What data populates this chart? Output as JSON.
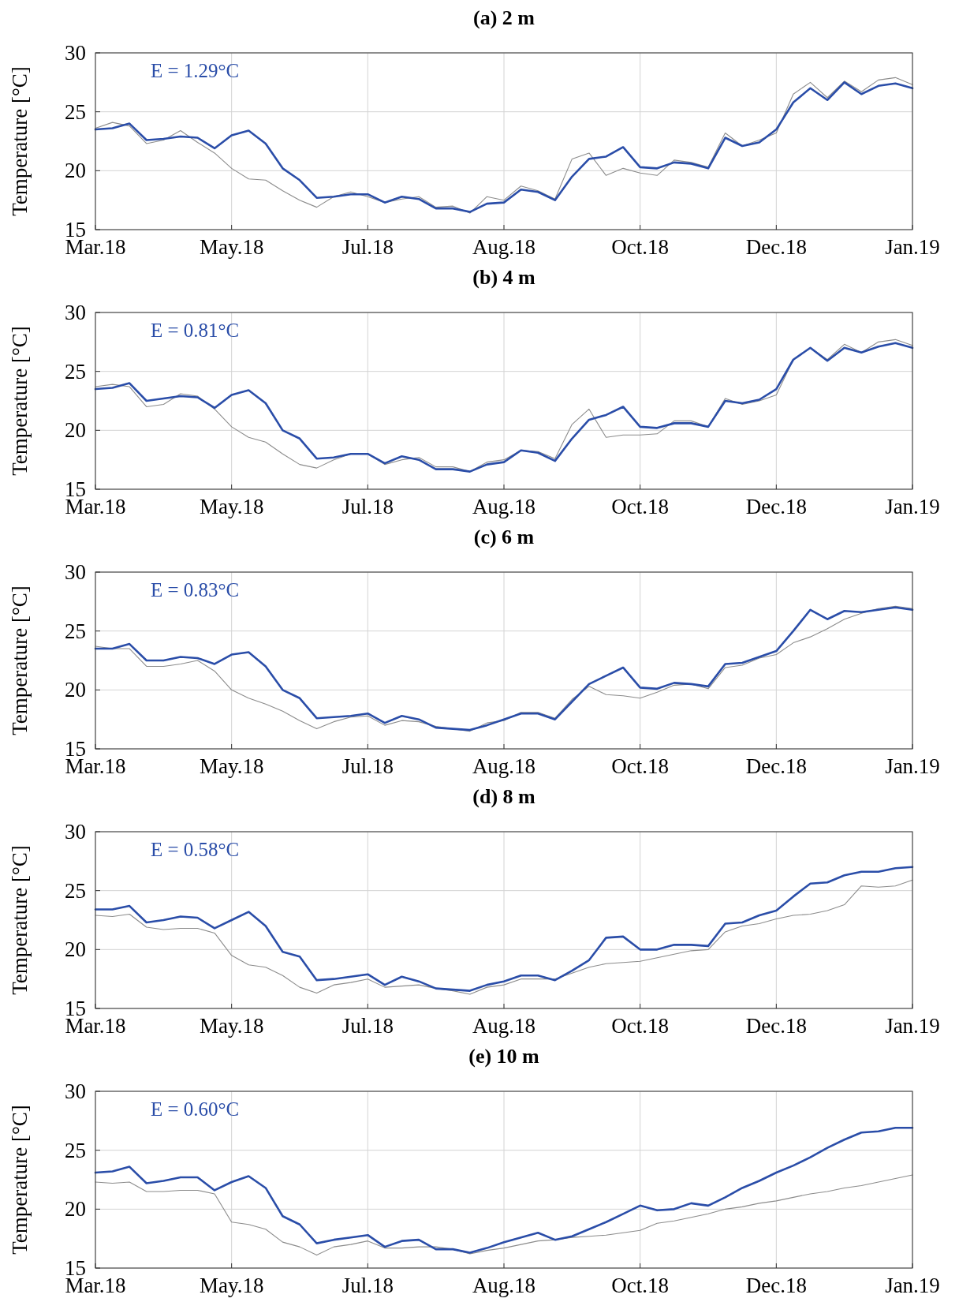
{
  "chart_data": [
    {
      "type": "line",
      "title": "(a) 2 m",
      "ylabel": "Temperature [°C]",
      "annotations": [
        "E = 1.29°C"
      ],
      "ylim": [
        15,
        30
      ],
      "yticks": [
        15,
        20,
        25,
        30
      ],
      "grid": true,
      "categories": [
        "Mar.18",
        null,
        null,
        null,
        null,
        null,
        null,
        null,
        "May.18",
        null,
        null,
        null,
        null,
        null,
        null,
        null,
        "Jul.18",
        null,
        null,
        null,
        null,
        null,
        null,
        null,
        "Aug.18",
        null,
        null,
        null,
        null,
        null,
        null,
        null,
        "Oct.18",
        null,
        null,
        null,
        null,
        null,
        null,
        null,
        "Dec.18",
        null,
        null,
        null,
        null,
        null,
        null,
        null,
        "Jan.19"
      ],
      "series": [
        {
          "color": "#2a4da8",
          "values": [
            23.5,
            23.6,
            24.0,
            22.6,
            22.7,
            22.9,
            22.8,
            21.9,
            23.0,
            23.4,
            22.3,
            20.2,
            19.2,
            17.7,
            17.8,
            18.0,
            18.0,
            17.3,
            17.8,
            17.6,
            16.8,
            16.8,
            16.5,
            17.2,
            17.3,
            18.4,
            18.2,
            17.5,
            19.5,
            21.0,
            21.2,
            22.0,
            20.3,
            20.2,
            20.7,
            20.6,
            20.2,
            22.8,
            22.1,
            22.4,
            23.5,
            25.8,
            27.0,
            26.0,
            27.5,
            26.5,
            27.2,
            27.4,
            27.0
          ]
        },
        {
          "color": "#8c8c8c",
          "values": [
            23.6,
            24.1,
            23.8,
            22.3,
            22.6,
            23.4,
            22.4,
            21.5,
            20.2,
            19.3,
            19.2,
            18.3,
            17.5,
            16.9,
            17.8,
            18.2,
            17.8,
            17.3,
            17.6,
            17.8,
            16.9,
            17.0,
            16.4,
            17.8,
            17.5,
            18.7,
            18.3,
            17.6,
            21.0,
            21.5,
            19.6,
            20.2,
            19.8,
            19.6,
            20.9,
            20.7,
            20.3,
            23.2,
            22.1,
            22.6,
            23.2,
            26.5,
            27.5,
            26.2,
            27.6,
            26.7,
            27.7,
            27.9,
            27.3
          ]
        }
      ]
    },
    {
      "type": "line",
      "title": "(b) 4 m",
      "ylabel": "Temperature [°C]",
      "annotations": [
        "E = 0.81°C"
      ],
      "ylim": [
        15,
        30
      ],
      "yticks": [
        15,
        20,
        25,
        30
      ],
      "grid": true,
      "categories": [
        "Mar.18",
        null,
        null,
        null,
        null,
        null,
        null,
        null,
        "May.18",
        null,
        null,
        null,
        null,
        null,
        null,
        null,
        "Jul.18",
        null,
        null,
        null,
        null,
        null,
        null,
        null,
        "Aug.18",
        null,
        null,
        null,
        null,
        null,
        null,
        null,
        "Oct.18",
        null,
        null,
        null,
        null,
        null,
        null,
        null,
        "Dec.18",
        null,
        null,
        null,
        null,
        null,
        null,
        null,
        "Jan.19"
      ],
      "series": [
        {
          "color": "#2a4da8",
          "values": [
            23.5,
            23.6,
            24.0,
            22.5,
            22.7,
            22.9,
            22.8,
            21.9,
            23.0,
            23.4,
            22.3,
            20.0,
            19.3,
            17.6,
            17.7,
            18.0,
            18.0,
            17.2,
            17.8,
            17.5,
            16.7,
            16.7,
            16.5,
            17.1,
            17.3,
            18.3,
            18.1,
            17.4,
            19.3,
            20.9,
            21.3,
            22.0,
            20.3,
            20.2,
            20.6,
            20.6,
            20.3,
            22.5,
            22.3,
            22.6,
            23.5,
            26.0,
            27.0,
            25.9,
            27.0,
            26.6,
            27.1,
            27.4,
            27.0
          ]
        },
        {
          "color": "#8c8c8c",
          "values": [
            23.7,
            23.9,
            23.7,
            22.0,
            22.2,
            23.1,
            22.9,
            21.8,
            20.3,
            19.4,
            19.0,
            18.0,
            17.1,
            16.8,
            17.5,
            18.0,
            18.0,
            17.1,
            17.5,
            17.7,
            16.9,
            16.9,
            16.5,
            17.3,
            17.5,
            18.3,
            18.2,
            17.6,
            20.5,
            21.8,
            19.4,
            19.6,
            19.6,
            19.7,
            20.8,
            20.8,
            20.3,
            22.7,
            22.2,
            22.5,
            23.0,
            26.0,
            27.0,
            26.0,
            27.3,
            26.6,
            27.5,
            27.7,
            27.2
          ]
        }
      ]
    },
    {
      "type": "line",
      "title": "(c) 6 m",
      "ylabel": "Temperature [°C]",
      "annotations": [
        "E = 0.83°C"
      ],
      "ylim": [
        15,
        30
      ],
      "yticks": [
        15,
        20,
        25,
        30
      ],
      "grid": true,
      "categories": [
        "Mar.18",
        null,
        null,
        null,
        null,
        null,
        null,
        null,
        "May.18",
        null,
        null,
        null,
        null,
        null,
        null,
        null,
        "Jul.18",
        null,
        null,
        null,
        null,
        null,
        null,
        null,
        "Aug.18",
        null,
        null,
        null,
        null,
        null,
        null,
        null,
        "Oct.18",
        null,
        null,
        null,
        null,
        null,
        null,
        null,
        "Dec.18",
        null,
        null,
        null,
        null,
        null,
        null,
        null,
        "Jan.19"
      ],
      "series": [
        {
          "color": "#2a4da8",
          "values": [
            23.5,
            23.5,
            23.9,
            22.5,
            22.5,
            22.8,
            22.7,
            22.2,
            23.0,
            23.2,
            22.0,
            20.0,
            19.3,
            17.6,
            17.7,
            17.8,
            18.0,
            17.2,
            17.8,
            17.5,
            16.8,
            16.7,
            16.6,
            17.0,
            17.5,
            18.0,
            18.0,
            17.5,
            19.0,
            20.5,
            21.2,
            21.9,
            20.2,
            20.1,
            20.6,
            20.5,
            20.3,
            22.2,
            22.3,
            22.8,
            23.3,
            25.0,
            26.8,
            26.0,
            26.7,
            26.6,
            26.8,
            27.0,
            26.8
          ]
        },
        {
          "color": "#8c8c8c",
          "values": [
            23.7,
            23.5,
            23.5,
            22.0,
            22.0,
            22.2,
            22.5,
            21.6,
            20.0,
            19.3,
            18.8,
            18.2,
            17.4,
            16.7,
            17.3,
            17.7,
            17.8,
            17.0,
            17.4,
            17.3,
            16.9,
            16.7,
            16.5,
            17.2,
            17.4,
            18.1,
            18.1,
            17.6,
            19.2,
            20.3,
            19.6,
            19.5,
            19.3,
            19.8,
            20.4,
            20.5,
            20.1,
            21.9,
            22.1,
            22.7,
            23.0,
            24.0,
            24.5,
            25.2,
            26.0,
            26.5,
            26.9,
            27.1,
            26.9
          ]
        }
      ]
    },
    {
      "type": "line",
      "title": "(d) 8 m",
      "ylabel": "Temperature [°C]",
      "annotations": [
        "E = 0.58°C"
      ],
      "ylim": [
        15,
        30
      ],
      "yticks": [
        15,
        20,
        25,
        30
      ],
      "grid": true,
      "categories": [
        "Mar.18",
        null,
        null,
        null,
        null,
        null,
        null,
        null,
        "May.18",
        null,
        null,
        null,
        null,
        null,
        null,
        null,
        "Jul.18",
        null,
        null,
        null,
        null,
        null,
        null,
        null,
        "Aug.18",
        null,
        null,
        null,
        null,
        null,
        null,
        null,
        "Oct.18",
        null,
        null,
        null,
        null,
        null,
        null,
        null,
        "Dec.18",
        null,
        null,
        null,
        null,
        null,
        null,
        null,
        "Jan.19"
      ],
      "series": [
        {
          "color": "#2a4da8",
          "values": [
            23.4,
            23.4,
            23.7,
            22.3,
            22.5,
            22.8,
            22.7,
            21.8,
            22.5,
            23.2,
            22.0,
            19.8,
            19.4,
            17.4,
            17.5,
            17.7,
            17.9,
            17.0,
            17.7,
            17.3,
            16.7,
            16.6,
            16.5,
            17.0,
            17.3,
            17.8,
            17.8,
            17.4,
            18.2,
            19.1,
            21.0,
            21.1,
            20.0,
            20.0,
            20.4,
            20.4,
            20.3,
            22.2,
            22.3,
            22.9,
            23.3,
            24.5,
            25.6,
            25.7,
            26.3,
            26.6,
            26.6,
            26.9,
            27.0
          ]
        },
        {
          "color": "#8c8c8c",
          "values": [
            22.9,
            22.8,
            23.0,
            21.9,
            21.7,
            21.8,
            21.8,
            21.4,
            19.5,
            18.7,
            18.5,
            17.8,
            16.8,
            16.3,
            17.0,
            17.2,
            17.5,
            16.8,
            16.9,
            17.0,
            16.7,
            16.5,
            16.2,
            16.8,
            17.0,
            17.5,
            17.5,
            17.5,
            18.0,
            18.5,
            18.8,
            18.9,
            19.0,
            19.3,
            19.6,
            19.9,
            20.0,
            21.5,
            22.0,
            22.2,
            22.6,
            22.9,
            23.0,
            23.3,
            23.8,
            25.4,
            25.3,
            25.4,
            25.9
          ]
        }
      ]
    },
    {
      "type": "line",
      "title": "(e) 10 m",
      "ylabel": "Temperature [°C]",
      "annotations": [
        "E = 0.60°C"
      ],
      "ylim": [
        15,
        30
      ],
      "yticks": [
        15,
        20,
        25,
        30
      ],
      "grid": true,
      "categories": [
        "Mar.18",
        null,
        null,
        null,
        null,
        null,
        null,
        null,
        "May.18",
        null,
        null,
        null,
        null,
        null,
        null,
        null,
        "Jul.18",
        null,
        null,
        null,
        null,
        null,
        null,
        null,
        "Aug.18",
        null,
        null,
        null,
        null,
        null,
        null,
        null,
        "Oct.18",
        null,
        null,
        null,
        null,
        null,
        null,
        null,
        "Dec.18",
        null,
        null,
        null,
        null,
        null,
        null,
        null,
        "Jan.19"
      ],
      "series": [
        {
          "color": "#2a4da8",
          "values": [
            23.1,
            23.2,
            23.6,
            22.2,
            22.4,
            22.7,
            22.7,
            21.6,
            22.3,
            22.8,
            21.8,
            19.4,
            18.7,
            17.1,
            17.4,
            17.6,
            17.8,
            16.8,
            17.3,
            17.4,
            16.6,
            16.6,
            16.3,
            16.7,
            17.2,
            17.6,
            18.0,
            17.4,
            17.7,
            18.3,
            18.9,
            19.6,
            20.3,
            19.9,
            20.0,
            20.5,
            20.3,
            21.0,
            21.8,
            22.4,
            23.1,
            23.7,
            24.4,
            25.2,
            25.9,
            26.5,
            26.6,
            26.9,
            26.9
          ]
        },
        {
          "color": "#8c8c8c",
          "values": [
            22.3,
            22.2,
            22.3,
            21.5,
            21.5,
            21.6,
            21.6,
            21.3,
            18.9,
            18.7,
            18.3,
            17.2,
            16.8,
            16.1,
            16.8,
            17.0,
            17.3,
            16.7,
            16.7,
            16.8,
            16.8,
            16.6,
            16.2,
            16.5,
            16.7,
            17.0,
            17.3,
            17.4,
            17.6,
            17.7,
            17.8,
            18.0,
            18.2,
            18.8,
            19.0,
            19.3,
            19.6,
            20.0,
            20.2,
            20.5,
            20.7,
            21.0,
            21.3,
            21.5,
            21.8,
            22.0,
            22.3,
            22.6,
            22.9
          ]
        }
      ]
    }
  ]
}
